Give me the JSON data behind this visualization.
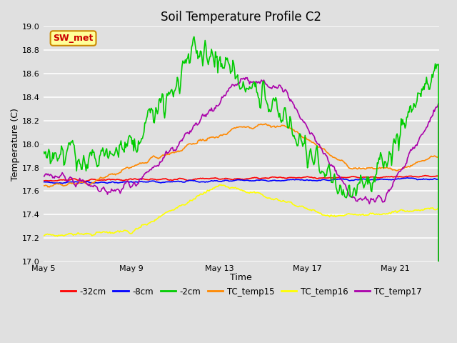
{
  "title": "Soil Temperature Profile C2",
  "xlabel": "Time",
  "ylabel": "Temperature (C)",
  "ylim": [
    17.0,
    19.0
  ],
  "yticks": [
    17.0,
    17.2,
    17.4,
    17.6,
    17.8,
    18.0,
    18.2,
    18.4,
    18.6,
    18.8,
    19.0
  ],
  "xtick_labels": [
    "May 5",
    "May 9",
    "May 13",
    "May 17",
    "May 21"
  ],
  "xtick_positions": [
    0,
    4,
    8,
    12,
    16
  ],
  "xlim": [
    0,
    18
  ],
  "bg_color": "#e0e0e0",
  "plot_bg_color": "#e0e0e0",
  "annotation_text": "SW_met",
  "annotation_bg": "#ffff99",
  "annotation_border": "#cc8800",
  "annotation_text_color": "#cc0000",
  "legend_entries": [
    "-32cm",
    "-8cm",
    "-2cm",
    "TC_temp15",
    "TC_temp16",
    "TC_temp17"
  ],
  "legend_colors": [
    "#ff0000",
    "#0000ff",
    "#00cc00",
    "#ff8800",
    "#ffff00",
    "#aa00aa"
  ],
  "line_width": 1.2,
  "n_points": 500
}
